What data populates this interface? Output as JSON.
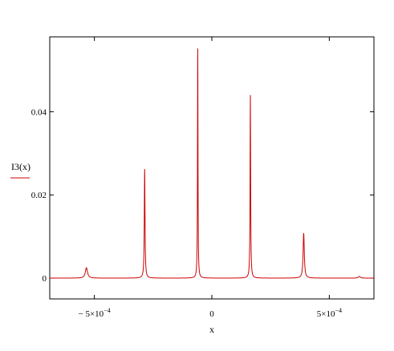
{
  "chart_data": {
    "type": "line",
    "xlabel": "x",
    "ylabel": "I3(x)",
    "xlim": [
      -0.00069,
      0.00069
    ],
    "ylim": [
      -0.005,
      0.058
    ],
    "x_ticks": [
      -0.0005,
      0,
      0.0005
    ],
    "x_tick_labels": [
      {
        "mantissa": "− 5×10",
        "exponent": "−4"
      },
      {
        "mantissa": "0",
        "exponent": ""
      },
      {
        "mantissa": "5×10",
        "exponent": "−4"
      }
    ],
    "y_ticks": [
      0,
      0.02,
      0.04
    ],
    "y_tick_labels": [
      "0",
      "0.02",
      "0.04"
    ],
    "grid": false,
    "line_color": "#cc0000",
    "series": [
      {
        "name": "I3(x)",
        "peaks": [
          {
            "x": -0.000534,
            "height": 0.0025,
            "width": 5.5e-06
          },
          {
            "x": -0.000286,
            "height": 0.0262,
            "width": 1.8e-06
          },
          {
            "x": -6e-05,
            "height": 0.0552,
            "width": 1.2e-06
          },
          {
            "x": 0.000164,
            "height": 0.044,
            "width": 1.4e-06
          },
          {
            "x": 0.000391,
            "height": 0.0108,
            "width": 3e-06
          },
          {
            "x": 0.000628,
            "height": 0.0004,
            "width": 5e-06
          }
        ]
      }
    ]
  }
}
